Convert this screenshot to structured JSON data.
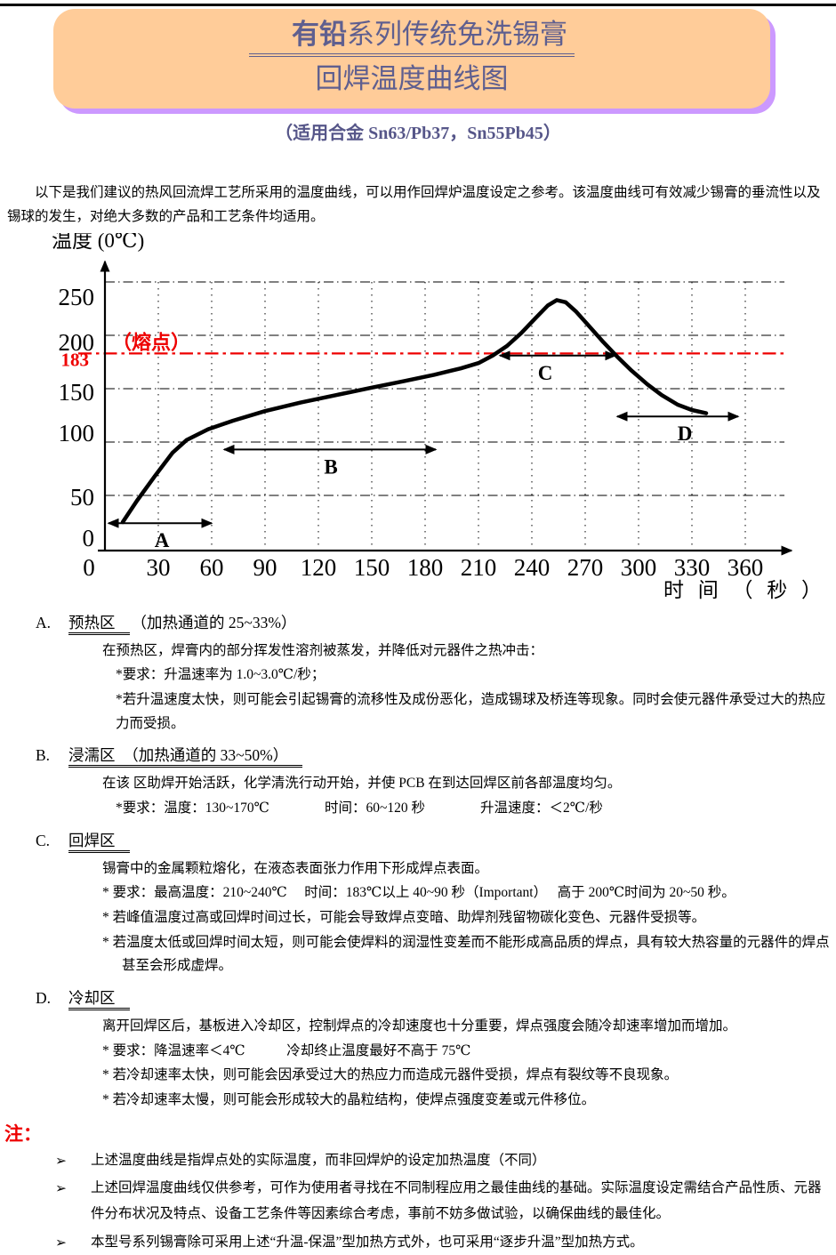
{
  "page": {
    "top_title": {
      "bold": "有铅",
      "rest": "系列传统免洗锡膏",
      "line2": "回焊温度曲线图"
    },
    "subtitle": "（适用合金 Sn63/Pb37，Sn55Pb45）",
    "intro": "以下是我们建议的热风回流焊工艺所采用的温度曲线，可以用作回焊炉温度设定之参考。该温度曲线可有效减少锡膏的垂流性以及锡球的发生，对绝大多数的产品和工艺条件均适用。"
  },
  "colors": {
    "header_fill": "#FFCC99",
    "header_shadow": "#CC99FF",
    "title_text": "#5F5F8F",
    "accent_red": "#EE0000"
  },
  "chart_data": {
    "type": "line",
    "xlabel": "时 间 （ 秒 ）",
    "ylabel": "温度 (0℃)",
    "x_ticks": [
      0,
      30,
      60,
      90,
      120,
      150,
      180,
      210,
      240,
      270,
      300,
      330,
      360
    ],
    "y_ticks": [
      0,
      50,
      100,
      150,
      200,
      250
    ],
    "x_range": [
      0,
      390
    ],
    "y_range": [
      0,
      275
    ],
    "grid": "dash-dot horizontal, dotted vertical",
    "melting_point": {
      "temp": 183,
      "value_label": "183",
      "label": "（熔点）",
      "color": "#EE0000"
    },
    "series": [
      {
        "name": "回焊温度曲线",
        "points": [
          [
            10,
            25
          ],
          [
            18,
            45
          ],
          [
            28,
            68
          ],
          [
            38,
            90
          ],
          [
            46,
            102
          ],
          [
            58,
            112
          ],
          [
            72,
            120
          ],
          [
            90,
            129
          ],
          [
            110,
            137
          ],
          [
            130,
            144
          ],
          [
            150,
            151
          ],
          [
            168,
            157
          ],
          [
            185,
            163
          ],
          [
            200,
            169
          ],
          [
            210,
            174
          ],
          [
            218,
            181
          ],
          [
            226,
            190
          ],
          [
            234,
            202
          ],
          [
            242,
            216
          ],
          [
            249,
            228
          ],
          [
            254,
            233
          ],
          [
            259,
            231
          ],
          [
            265,
            222
          ],
          [
            272,
            209
          ],
          [
            280,
            194
          ],
          [
            288,
            180
          ],
          [
            296,
            167
          ],
          [
            305,
            154
          ],
          [
            313,
            144
          ],
          [
            322,
            135
          ],
          [
            330,
            130
          ],
          [
            338,
            127
          ]
        ]
      }
    ],
    "zones": [
      {
        "label": "A",
        "from_s": 2,
        "to_s": 60,
        "arrow_temp": 24
      },
      {
        "label": "B",
        "from_s": 67,
        "to_s": 186,
        "arrow_temp": 93
      },
      {
        "label": "C",
        "from_s": 222,
        "to_s": 287,
        "arrow_temp": 181
      },
      {
        "label": "D",
        "from_s": 288,
        "to_s": 356,
        "arrow_temp": 124
      }
    ],
    "peak": {
      "time_s": 253,
      "temp": 233
    }
  },
  "sections": [
    {
      "num": "A.",
      "title": "预热区",
      "suffix": "（加热通道的 25~33%）",
      "intro": "在预热区，焊膏内的部分挥发性溶剂被蒸发，并降低对元器件之热冲击：",
      "bullets": [
        "*要求：升温速率为 1.0~3.0℃/秒；",
        "*若升温速度太快，则可能会引起锡膏的流移性及成份恶化，造成锡球及桥连等现象。同时会使元器件承受过大的热应力而受损。"
      ]
    },
    {
      "num": "B.",
      "title": "浸濡区　（加热通道的 33~50%）",
      "suffix": "",
      "intro": "在该 区助焊开始活跃，化学清洗行动开始，并使 PCB 在到达回焊区前各部温度均匀。",
      "bullets": [
        "*要求：温度：130~170℃　　　　时间：60~120 秒　　　　升温速度：＜2℃/秒"
      ]
    },
    {
      "num": "C.",
      "title": "回焊区",
      "suffix": "",
      "intro": "锡膏中的金属颗粒熔化，在液态表面张力作用下形成焊点表面。",
      "bullets": [
        "* 要求：最高温度：210~240℃　 时间：183℃以上 40~90 秒（Important）　 高于 200℃时间为 20~50 秒。",
        "* 若峰值温度过高或回焊时间过长，可能会导致焊点变暗、助焊剂残留物碳化变色、元器件受损等。",
        "* 若温度太低或回焊时间太短，则可能会使焊料的润湿性变差而不能形成高品质的焊点，具有较大热容量的元器件的焊点甚至会形成虚焊。"
      ]
    },
    {
      "num": "D.",
      "title": "冷却区",
      "suffix": "",
      "intro": "离开回焊区后，基板进入冷却区，控制焊点的冷却速度也十分重要，焊点强度会随冷却速率增加而增加。",
      "bullets": [
        "* 要求：降温速率＜4℃　　　冷却终止温度最好不高于 75℃",
        "* 若冷却速率太快，则可能会因承受过大的热应力而造成元器件受损，焊点有裂纹等不良现象。",
        "* 若冷却速率太慢，则可能会形成较大的晶粒结构，使焊点强度变差或元件移位。"
      ]
    }
  ],
  "notes": {
    "label": "注：",
    "bullet": "➢",
    "items": [
      "上述温度曲线是指焊点处的实际温度，而非回焊炉的设定加热温度（不同）",
      "上述回焊温度曲线仅供参考，可作为使用者寻找在不同制程应用之最佳曲线的基础。实际温度设定需结合产品性质、元器件分布状况及特点、设备工艺条件等因素综合考虑，事前不妨多做试验，以确保曲线的最佳化。",
      "本型号系列锡膏除可采用上述“升温-保温”型加热方式外，也可采用“逐步升温”型加热方式。"
    ]
  }
}
